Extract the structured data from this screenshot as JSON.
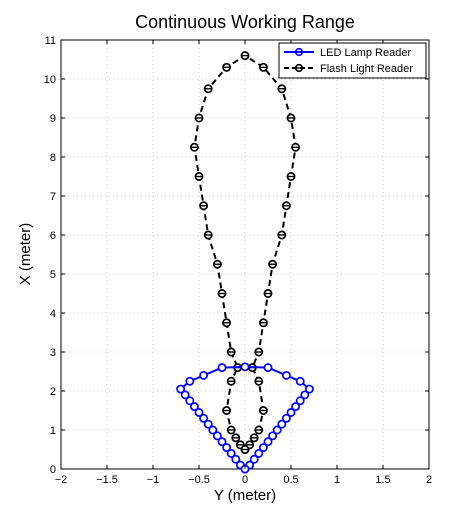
{
  "chart_data": {
    "type": "line",
    "title": "Continuous Working Range",
    "xlabel": "Y (meter)",
    "ylabel": "X (meter)",
    "xlim": [
      -2,
      2
    ],
    "ylim": [
      0,
      11
    ],
    "x_ticks": [
      -2,
      -1.5,
      -1,
      -0.5,
      0,
      0.5,
      1,
      1.5,
      2
    ],
    "y_ticks": [
      0,
      1,
      2,
      3,
      4,
      5,
      6,
      7,
      8,
      9,
      10,
      11
    ],
    "x_tick_labels": [
      "−2",
      "−1.5",
      "−1",
      "−0.5",
      "0",
      "0.5",
      "1",
      "1.5",
      "2"
    ],
    "y_tick_labels": [
      "0",
      "1",
      "2",
      "3",
      "4",
      "5",
      "6",
      "7",
      "8",
      "9",
      "10",
      "11"
    ],
    "grid": true,
    "legend_position": "top-right",
    "series": [
      {
        "name": "LED Lamp Reader",
        "color": "#0000ff",
        "line_style": "solid",
        "marker": "circle",
        "points": [
          [
            0,
            0
          ],
          [
            -0.05,
            0.1
          ],
          [
            -0.1,
            0.25
          ],
          [
            -0.15,
            0.4
          ],
          [
            -0.2,
            0.55
          ],
          [
            -0.25,
            0.7
          ],
          [
            -0.3,
            0.85
          ],
          [
            -0.35,
            1.0
          ],
          [
            -0.4,
            1.15
          ],
          [
            -0.45,
            1.3
          ],
          [
            -0.5,
            1.45
          ],
          [
            -0.55,
            1.6
          ],
          [
            -0.6,
            1.75
          ],
          [
            -0.65,
            1.9
          ],
          [
            -0.7,
            2.05
          ],
          [
            -0.6,
            2.25
          ],
          [
            -0.45,
            2.4
          ],
          [
            -0.25,
            2.6
          ],
          [
            0,
            2.62
          ],
          [
            0.25,
            2.6
          ],
          [
            0.45,
            2.4
          ],
          [
            0.6,
            2.25
          ],
          [
            0.7,
            2.05
          ],
          [
            0.65,
            1.9
          ],
          [
            0.6,
            1.75
          ],
          [
            0.55,
            1.6
          ],
          [
            0.5,
            1.45
          ],
          [
            0.45,
            1.3
          ],
          [
            0.4,
            1.15
          ],
          [
            0.35,
            1.0
          ],
          [
            0.3,
            0.85
          ],
          [
            0.25,
            0.7
          ],
          [
            0.2,
            0.55
          ],
          [
            0.15,
            0.4
          ],
          [
            0.1,
            0.25
          ],
          [
            0.05,
            0.1
          ],
          [
            0,
            0
          ]
        ]
      },
      {
        "name": "Flash Light Reader",
        "color": "#000000",
        "line_style": "dashed",
        "marker": "circle-filled-half",
        "points": [
          [
            0,
            0.5
          ],
          [
            -0.05,
            0.62
          ],
          [
            -0.1,
            0.8
          ],
          [
            -0.15,
            1.0
          ],
          [
            -0.2,
            1.5
          ],
          [
            -0.15,
            2.25
          ],
          [
            -0.08,
            2.6
          ],
          [
            -0.15,
            3.0
          ],
          [
            -0.2,
            3.75
          ],
          [
            -0.25,
            4.5
          ],
          [
            -0.3,
            5.25
          ],
          [
            -0.4,
            6.0
          ],
          [
            -0.45,
            6.75
          ],
          [
            -0.5,
            7.5
          ],
          [
            -0.55,
            8.25
          ],
          [
            -0.5,
            9.0
          ],
          [
            -0.4,
            9.75
          ],
          [
            -0.2,
            10.3
          ],
          [
            0,
            10.6
          ],
          [
            0.2,
            10.3
          ],
          [
            0.4,
            9.75
          ],
          [
            0.5,
            9.0
          ],
          [
            0.55,
            8.25
          ],
          [
            0.5,
            7.5
          ],
          [
            0.45,
            6.75
          ],
          [
            0.4,
            6.0
          ],
          [
            0.3,
            5.25
          ],
          [
            0.25,
            4.5
          ],
          [
            0.2,
            3.75
          ],
          [
            0.15,
            3.0
          ],
          [
            0.08,
            2.6
          ],
          [
            0.15,
            2.25
          ],
          [
            0.2,
            1.5
          ],
          [
            0.15,
            1.0
          ],
          [
            0.1,
            0.8
          ],
          [
            0.05,
            0.62
          ],
          [
            0,
            0.5
          ]
        ]
      }
    ]
  }
}
